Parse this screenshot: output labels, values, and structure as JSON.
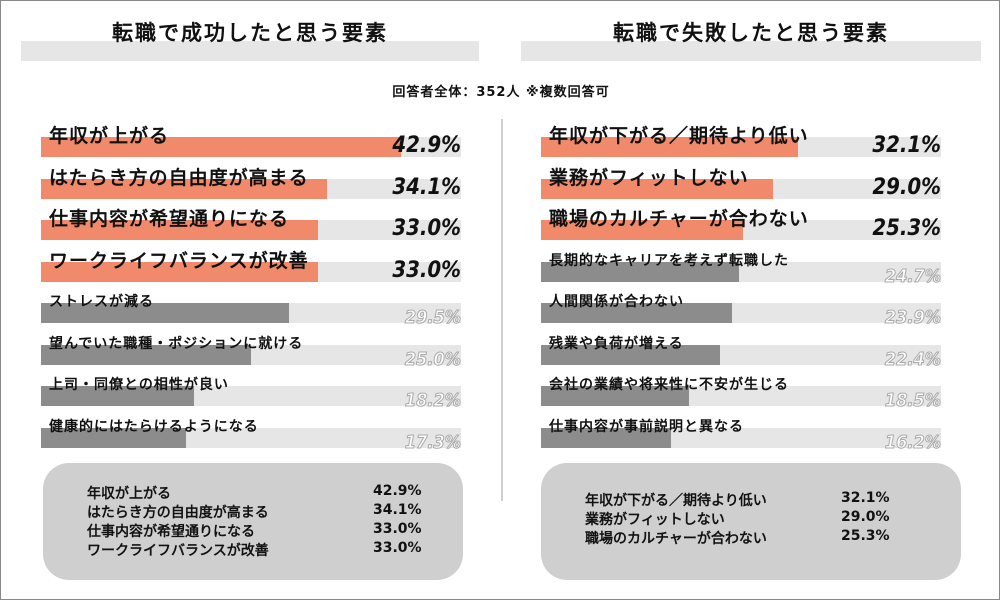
{
  "left_title": "転職で成功したと思う要素",
  "right_title": "転職で失敗したと思う要素",
  "subtitle": "回答者全体：352人 ※複数回答可",
  "colors": {
    "accent": "#f08a6a",
    "gray_bar": "#8c8c8c",
    "track": "#e6e6e6",
    "summary_bg": "#cfcfcf"
  },
  "chart_data": [
    {
      "type": "bar",
      "orientation": "horizontal",
      "title": "転職で成功したと思う要素",
      "xlim": [
        0,
        50
      ],
      "categories": [
        "年収が上がる",
        "はたらき方の自由度が高まる",
        "仕事内容が希望通りになる",
        "ワークライフバランスが改善",
        "ストレスが減る",
        "望んでいた職種・ポジションに就ける",
        "上司・同僚との相性が良い",
        "健康的にはたらけるようになる"
      ],
      "values": [
        42.9,
        34.1,
        33.0,
        33.0,
        29.5,
        25.0,
        18.2,
        17.3
      ],
      "value_labels": [
        "42.9%",
        "34.1%",
        "33.0%",
        "33.0%",
        "29.5%",
        "25.0%",
        "18.2%",
        "17.3%"
      ],
      "highlight_count": 4
    },
    {
      "type": "bar",
      "orientation": "horizontal",
      "title": "転職で失敗したと思う要素",
      "xlim": [
        0,
        50
      ],
      "categories": [
        "年収が下がる／期待より低い",
        "業務がフィットしない",
        "職場のカルチャーが合わない",
        "長期的なキャリアを考えず転職した",
        "人間関係が合わない",
        "残業や負荷が増える",
        "会社の業績や将来性に不安が生じる",
        "仕事内容が事前説明と異なる"
      ],
      "values": [
        32.1,
        29.0,
        25.3,
        24.7,
        23.9,
        22.4,
        18.5,
        16.2
      ],
      "value_labels": [
        "32.1%",
        "29.0%",
        "25.3%",
        "24.7%",
        "23.9%",
        "22.4%",
        "18.5%",
        "16.2%"
      ],
      "highlight_count": 3
    }
  ],
  "left_summary": [
    {
      "label": "年収が上がる",
      "value": "42.9%"
    },
    {
      "label": "はたらき方の自由度が高まる",
      "value": "34.1%"
    },
    {
      "label": "仕事内容が希望通りになる",
      "value": "33.0%"
    },
    {
      "label": "ワークライフバランスが改善",
      "value": "33.0%"
    }
  ],
  "right_summary": [
    {
      "label": "年収が下がる／期待より低い",
      "value": "32.1%"
    },
    {
      "label": "業務がフィットしない",
      "value": "29.0%"
    },
    {
      "label": "職場のカルチャーが合わない",
      "value": "25.3%"
    }
  ]
}
